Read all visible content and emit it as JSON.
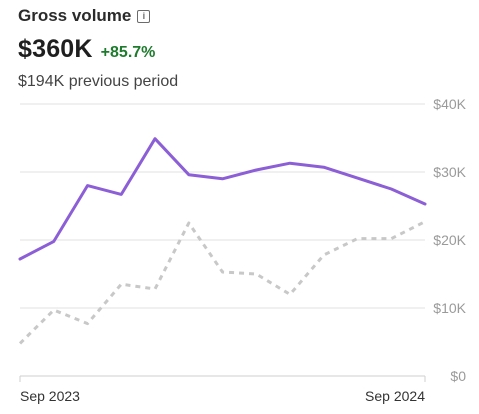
{
  "header": {
    "title": "Gross volume",
    "info_icon": "info-icon",
    "value": "$360K",
    "change": "+85.7%",
    "previous": "$194K previous period"
  },
  "colors": {
    "current_series": "#8c5fd6",
    "previous_series": "#c8c8c8",
    "gridline": "#e2e2e2",
    "positive_change": "#1e7b2e"
  },
  "chart_data": {
    "type": "line",
    "title": "",
    "xlabel": "",
    "ylabel": "",
    "ylim": [
      0,
      40000
    ],
    "y_ticks": [
      {
        "value": 0,
        "label": "$0"
      },
      {
        "value": 10000,
        "label": "$10K"
      },
      {
        "value": 20000,
        "label": "$20K"
      },
      {
        "value": 30000,
        "label": "$30K"
      },
      {
        "value": 40000,
        "label": "$40K"
      }
    ],
    "x_ticks": [
      "Sep 2023",
      "Sep 2024"
    ],
    "grid": true,
    "series": [
      {
        "style": "solid",
        "values": [
          17200,
          19800,
          28000,
          26700,
          34900,
          29600,
          29000,
          30300,
          31300,
          30700,
          29100,
          27500,
          25300
        ]
      },
      {
        "style": "dotted",
        "values": [
          4800,
          9700,
          7700,
          13500,
          12800,
          22500,
          15300,
          15000,
          12000,
          17800,
          20200,
          20200,
          22700
        ]
      }
    ]
  }
}
